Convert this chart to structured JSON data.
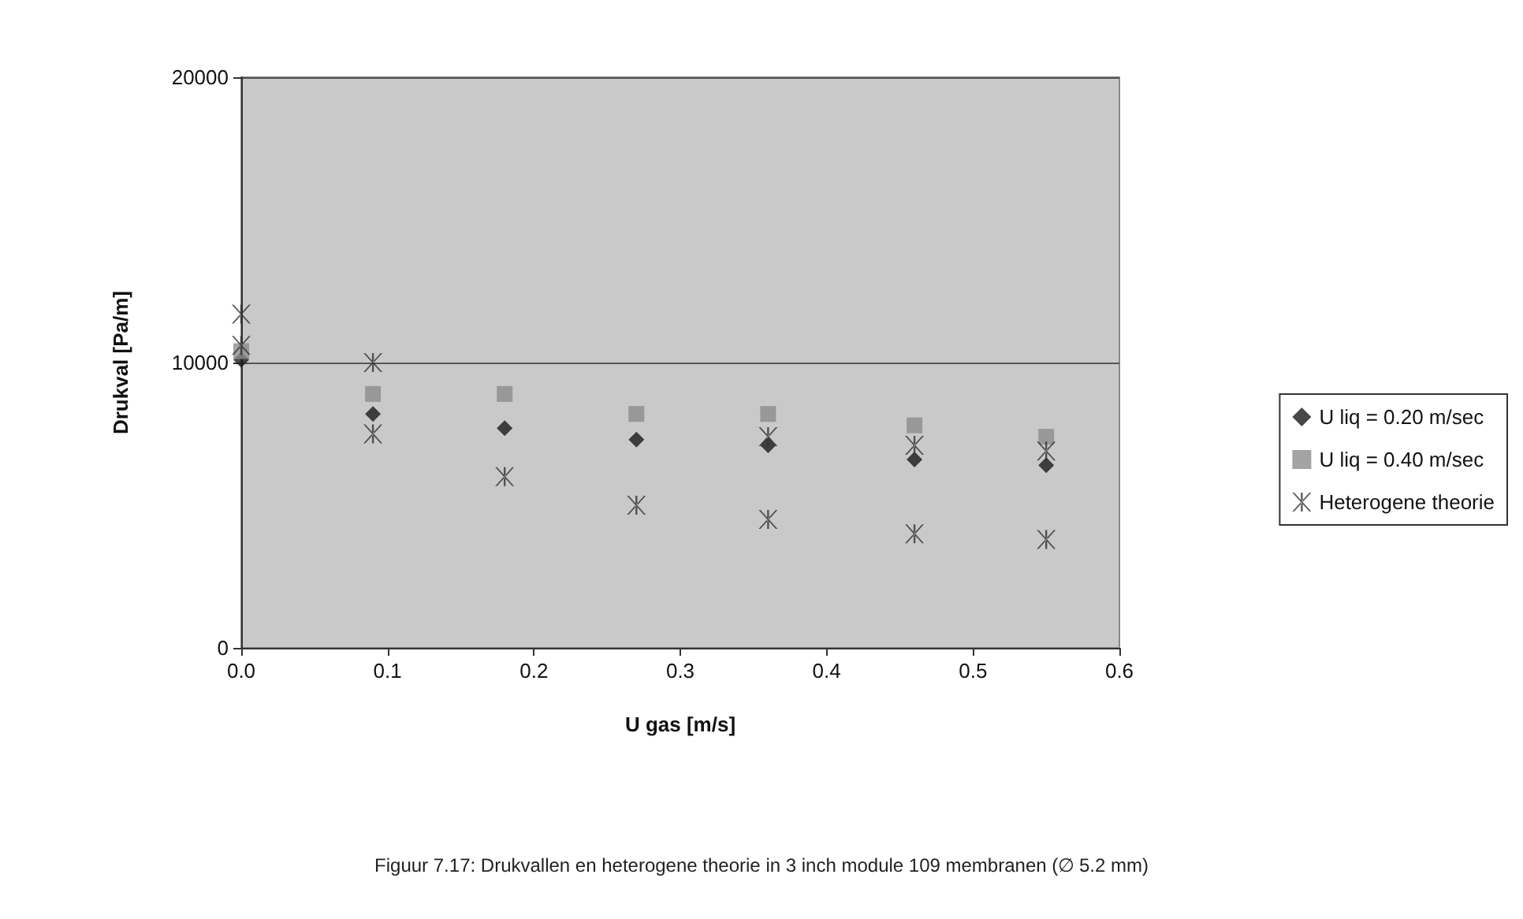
{
  "chart_data": {
    "type": "scatter",
    "xlabel": "U gas [m/s]",
    "ylabel": "Drukval [Pa/m]",
    "xlim": [
      0,
      0.6
    ],
    "xticks": [
      {
        "value": 0,
        "label": "0.0"
      },
      0.1,
      0.2,
      0.3,
      0.4,
      0.5,
      0.6
    ],
    "ylim": [
      0,
      20000
    ],
    "yticks": [
      0,
      10000,
      20000
    ],
    "grid": "y",
    "legend": "right",
    "series": [
      {
        "name": "U liq = 0.20 m/sec",
        "color": "#1a1a1a",
        "marker": "diamond",
        "x": [
          0,
          0.09,
          0.18,
          0.27,
          0.36,
          0.46,
          0.55
        ],
        "values": [
          10100,
          8200,
          7700,
          7300,
          7100,
          6600,
          6400
        ]
      },
      {
        "name": "U liq = 0.40 m/sec",
        "color": "#8c8c8c",
        "marker": "square",
        "x": [
          0,
          0.09,
          0.18,
          0.27,
          0.36,
          0.46,
          0.55
        ],
        "values": [
          10400,
          8900,
          8900,
          8200,
          8200,
          7800,
          7400
        ]
      },
      {
        "name": "Heterogene theorie",
        "color": "#333333",
        "marker": "cross",
        "x": [
          0,
          0,
          0.09,
          0.09,
          0.18,
          0.27,
          0.36,
          0.36,
          0.46,
          0.46,
          0.55,
          0.55
        ],
        "values": [
          11700,
          10600,
          10000,
          7500,
          6000,
          5000,
          7400,
          4500,
          7100,
          4000,
          6900,
          3800
        ]
      }
    ],
    "annotations": [
      "Figuur 7.17: Drukvallen en heterogene theorie in 3 inch module 109 membranen (∅ 5.2 mm)"
    ]
  }
}
